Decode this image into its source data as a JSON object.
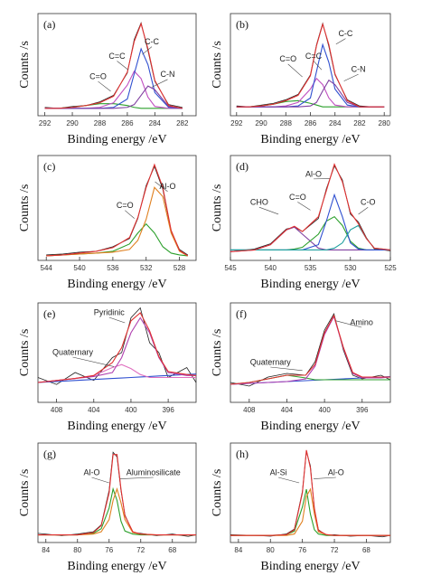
{
  "chart_data": [
    {
      "type": "line",
      "label": "(a)",
      "x_label": "Binding energy /eV",
      "y_label": "Counts /s",
      "xlim": [
        292.5,
        281
      ],
      "xticks": [
        292,
        290,
        288,
        286,
        284,
        282
      ],
      "ylim": [
        0,
        110
      ],
      "x": [
        292,
        291,
        290,
        289,
        288,
        287,
        286,
        285.5,
        285,
        284.5,
        284,
        283,
        282
      ],
      "series": [
        {
          "color": "#222222",
          "values": [
            9,
            8,
            10,
            11,
            15,
            22,
            46,
            82,
            100,
            70,
            37,
            12,
            9
          ]
        },
        {
          "color": "#2ca02c",
          "values": [
            8,
            8,
            9,
            11,
            13,
            13,
            11,
            9,
            8,
            8,
            8,
            8,
            8
          ]
        },
        {
          "color": "#c050c0",
          "values": [
            8,
            8,
            8,
            8,
            9,
            14,
            33,
            48,
            40,
            20,
            10,
            8,
            8
          ]
        },
        {
          "color": "#3050d0",
          "values": [
            8,
            8,
            8,
            8,
            8,
            9,
            18,
            45,
            72,
            55,
            25,
            9,
            8
          ]
        },
        {
          "color": "#8040a0",
          "values": [
            8,
            8,
            8,
            8,
            8,
            8,
            9,
            12,
            22,
            32,
            28,
            10,
            8
          ]
        },
        {
          "color": "#e03030",
          "values": [
            8,
            8,
            9,
            11,
            14,
            21,
            47,
            80,
            99,
            72,
            38,
            11,
            8
          ]
        }
      ],
      "annotations": [
        "C=O",
        "C=C",
        "C-C",
        "C-N"
      ]
    },
    {
      "type": "line",
      "label": "(b)",
      "x_label": "Binding energy /eV",
      "y_label": "Counts /s",
      "xlim": [
        292.5,
        279.5
      ],
      "xticks": [
        292,
        290,
        288,
        286,
        284,
        282,
        280
      ],
      "ylim": [
        0,
        115
      ],
      "x": [
        292,
        291,
        290,
        289,
        288,
        287,
        286,
        285.5,
        285,
        284.5,
        284,
        283,
        282,
        281,
        280
      ],
      "series": [
        {
          "color": "#222222",
          "values": [
            11,
            10,
            12,
            14,
            18,
            24,
            46,
            80,
            104,
            78,
            46,
            18,
            11,
            10,
            10
          ]
        },
        {
          "color": "#2ca02c",
          "values": [
            10,
            10,
            11,
            13,
            16,
            17,
            14,
            12,
            10,
            10,
            10,
            10,
            10,
            10,
            10
          ]
        },
        {
          "color": "#c050c0",
          "values": [
            10,
            10,
            10,
            10,
            11,
            15,
            30,
            42,
            35,
            20,
            12,
            10,
            10,
            10,
            10
          ]
        },
        {
          "color": "#3050d0",
          "values": [
            10,
            10,
            10,
            10,
            10,
            11,
            20,
            50,
            80,
            60,
            30,
            12,
            10,
            10,
            10
          ]
        },
        {
          "color": "#8040a0",
          "values": [
            10,
            10,
            10,
            10,
            10,
            10,
            11,
            15,
            28,
            40,
            35,
            15,
            10,
            10,
            10
          ]
        },
        {
          "color": "#e03030",
          "values": [
            10,
            10,
            11,
            13,
            17,
            23,
            45,
            79,
            103,
            80,
            47,
            17,
            10,
            10,
            10
          ]
        }
      ],
      "annotations": [
        "C=O",
        "C=C",
        "C-C",
        "C-N"
      ]
    },
    {
      "type": "line",
      "label": "(c)",
      "x_label": "Binding energy /eV",
      "y_label": "Counts /s",
      "xlim": [
        545,
        526
      ],
      "xticks": [
        544,
        540,
        536,
        532,
        528
      ],
      "ylim": [
        0,
        115
      ],
      "x": [
        544,
        542,
        540,
        538,
        536,
        534,
        533,
        532,
        531,
        530,
        529,
        528,
        527
      ],
      "series": [
        {
          "color": "#222222",
          "values": [
            6,
            7,
            9,
            10,
            15,
            24,
            46,
            82,
            103,
            78,
            32,
            12,
            6
          ]
        },
        {
          "color": "#2ca02c",
          "values": [
            5,
            6,
            7,
            8,
            10,
            18,
            30,
            40,
            30,
            15,
            8,
            6,
            5
          ]
        },
        {
          "color": "#e08020",
          "values": [
            5,
            6,
            7,
            8,
            9,
            12,
            22,
            45,
            80,
            70,
            30,
            10,
            5
          ]
        },
        {
          "color": "#e03030",
          "values": [
            5,
            6,
            8,
            10,
            14,
            25,
            47,
            80,
            105,
            80,
            33,
            11,
            5
          ]
        }
      ],
      "annotations": [
        "C=O",
        "Al-O"
      ]
    },
    {
      "type": "line",
      "label": "(d)",
      "x_label": "Binding energy /eV",
      "y_label": "Counts /s",
      "xlim": [
        545,
        525
      ],
      "xticks": [
        545,
        540,
        535,
        530,
        525
      ],
      "ylim": [
        0,
        120
      ],
      "x": [
        545,
        542,
        540,
        538,
        537,
        536,
        534,
        533,
        532,
        531,
        530,
        529,
        528,
        527,
        525
      ],
      "series": [
        {
          "color": "#222222",
          "values": [
            10,
            13,
            19,
            36,
            38,
            33,
            48,
            82,
            108,
            92,
            53,
            44,
            26,
            13,
            11
          ]
        },
        {
          "color": "#8040a0",
          "values": [
            10,
            12,
            18,
            35,
            38,
            30,
            14,
            12,
            12,
            12,
            12,
            12,
            12,
            12,
            12
          ]
        },
        {
          "color": "#2ca02c",
          "values": [
            12,
            12,
            12,
            12,
            13,
            15,
            30,
            45,
            50,
            40,
            22,
            14,
            12,
            12,
            12
          ]
        },
        {
          "color": "#3050d0",
          "values": [
            12,
            12,
            12,
            12,
            12,
            12,
            18,
            45,
            75,
            50,
            20,
            13,
            12,
            12,
            12
          ]
        },
        {
          "color": "#20a0a0",
          "values": [
            12,
            12,
            12,
            12,
            12,
            12,
            12,
            12,
            14,
            20,
            35,
            40,
            25,
            14,
            12
          ]
        },
        {
          "color": "#e03030",
          "values": [
            10,
            12,
            18,
            35,
            39,
            33,
            50,
            80,
            110,
            90,
            55,
            42,
            25,
            14,
            12
          ]
        }
      ],
      "annotations": [
        "CHO",
        "C=O",
        "Al-O",
        "C-O"
      ]
    },
    {
      "type": "line",
      "label": "(e)",
      "x_label": "Binding energy /eV",
      "y_label": "Counts /s",
      "xlim": [
        410,
        393
      ],
      "xticks": [
        408,
        404,
        400,
        396
      ],
      "ylim": [
        0,
        100
      ],
      "x": [
        410,
        408,
        406,
        404,
        402,
        401,
        400,
        399,
        398,
        397,
        396,
        394,
        393
      ],
      "series": [
        {
          "color": "#222222",
          "values": [
            25,
            18,
            30,
            22,
            45,
            50,
            85,
            95,
            60,
            50,
            25,
            35,
            20
          ]
        },
        {
          "color": "#3050d0",
          "values": [
            20,
            21,
            22,
            23,
            24,
            24.5,
            25,
            25.5,
            26,
            26.5,
            27,
            28,
            28.5
          ]
        },
        {
          "color": "#e070c0",
          "values": [
            20,
            22,
            24,
            27,
            35,
            38,
            34,
            28,
            25,
            25,
            25,
            25,
            25
          ]
        },
        {
          "color": "#b040b0",
          "values": [
            20,
            22,
            24,
            26,
            30,
            45,
            70,
            85,
            70,
            45,
            30,
            27,
            27
          ]
        },
        {
          "color": "#e03030",
          "values": [
            20,
            22,
            24,
            27,
            40,
            55,
            82,
            90,
            72,
            46,
            31,
            28,
            27
          ]
        }
      ],
      "annotations": [
        "Pyridinic",
        "Quaternary"
      ]
    },
    {
      "type": "line",
      "label": "(f)",
      "x_label": "Binding energy /eV",
      "y_label": "Counts /s",
      "xlim": [
        410,
        393
      ],
      "xticks": [
        408,
        404,
        400,
        396
      ],
      "ylim": [
        0,
        110
      ],
      "x": [
        410,
        408,
        406,
        404,
        402,
        401,
        400,
        399,
        398,
        397,
        396,
        394,
        393
      ],
      "series": [
        {
          "color": "#222222",
          "values": [
            22,
            18,
            28,
            32,
            30,
            45,
            80,
            98,
            58,
            30,
            26,
            30,
            25
          ]
        },
        {
          "color": "#3050d0",
          "values": [
            20,
            21,
            22,
            23,
            24,
            24.5,
            25,
            25.5,
            26,
            26.5,
            27,
            28,
            28.5
          ]
        },
        {
          "color": "#2ca02c",
          "values": [
            20,
            22,
            26,
            30,
            27,
            25,
            25,
            25,
            25,
            25,
            25,
            25,
            25
          ]
        },
        {
          "color": "#b040b0",
          "values": [
            20,
            21,
            22,
            23,
            26,
            40,
            75,
            95,
            60,
            32,
            27,
            27,
            28
          ]
        },
        {
          "color": "#e03030",
          "values": [
            20,
            22,
            26,
            30,
            30,
            42,
            77,
            96,
            61,
            33,
            28,
            28,
            28
          ]
        }
      ],
      "annotations": [
        "Amino",
        "Quaternary"
      ]
    },
    {
      "type": "line",
      "label": "(g)",
      "x_label": "Binding energy /eV",
      "y_label": "Counts /s",
      "xlim": [
        85,
        65
      ],
      "xticks": [
        84,
        80,
        76,
        72,
        68
      ],
      "ylim": [
        0,
        130
      ],
      "x": [
        85,
        82,
        80,
        78,
        77,
        76,
        75.5,
        75,
        74.5,
        74,
        73,
        72,
        70,
        68,
        66,
        65
      ],
      "series": [
        {
          "color": "#222222",
          "values": [
            12,
            9,
            11,
            14,
            23,
            68,
            118,
            112,
            68,
            36,
            13,
            12,
            9,
            11,
            8,
            10
          ]
        },
        {
          "color": "#2ca02c",
          "values": [
            10,
            10,
            10,
            12,
            18,
            45,
            70,
            55,
            28,
            15,
            11,
            10,
            10,
            10,
            10,
            10
          ]
        },
        {
          "color": "#e08020",
          "values": [
            10,
            10,
            10,
            11,
            14,
            30,
            55,
            70,
            52,
            30,
            13,
            11,
            10,
            10,
            10,
            10
          ]
        },
        {
          "color": "#e03030",
          "values": [
            10,
            10,
            10,
            13,
            22,
            65,
            115,
            115,
            70,
            35,
            14,
            11,
            10,
            10,
            10,
            10
          ]
        }
      ],
      "annotations": [
        "Al-O",
        "Aluminosilicate"
      ]
    },
    {
      "type": "line",
      "label": "(h)",
      "x_label": "Binding energy /eV",
      "y_label": "Counts /s",
      "xlim": [
        85,
        65
      ],
      "xticks": [
        84,
        80,
        76,
        72,
        68
      ],
      "ylim": [
        0,
        140
      ],
      "x": [
        85,
        82,
        80,
        78,
        77,
        76,
        75.5,
        75,
        74.5,
        74,
        73,
        72,
        70,
        68,
        66,
        65
      ],
      "series": [
        {
          "color": "#222222",
          "values": [
            11,
            10,
            9,
            12,
            19,
            72,
            128,
            108,
            46,
            18,
            10,
            11,
            9,
            10,
            8,
            10
          ]
        },
        {
          "color": "#2ca02c",
          "values": [
            10,
            10,
            10,
            11,
            16,
            50,
            75,
            40,
            18,
            12,
            10,
            10,
            10,
            10,
            10,
            10
          ]
        },
        {
          "color": "#e08020",
          "values": [
            10,
            10,
            10,
            10,
            12,
            30,
            65,
            75,
            40,
            15,
            11,
            10,
            10,
            10,
            10,
            10
          ]
        },
        {
          "color": "#e03030",
          "values": [
            10,
            10,
            10,
            11,
            18,
            70,
            130,
            105,
            48,
            17,
            11,
            10,
            10,
            10,
            10,
            10
          ]
        }
      ],
      "annotations": [
        "Al-Si",
        "Al-O"
      ]
    }
  ]
}
